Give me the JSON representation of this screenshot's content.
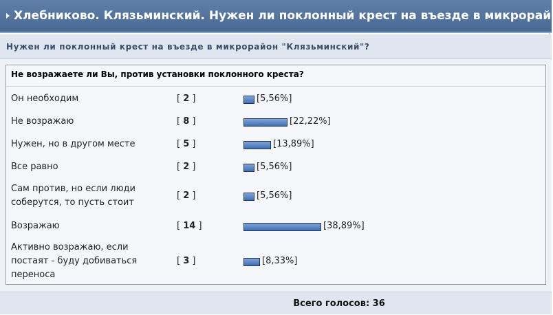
{
  "header": {
    "title": "Хлебниково. Клязьминский. Нужен ли поклонный крест на въезде в микрорайон?"
  },
  "subheader": {
    "title": "Нужен ли поклонный крест на въезде в микрорайон \"Клязьминский\"?"
  },
  "poll": {
    "question": "Не возражаете ли Вы, против установки поклонного креста?",
    "options": [
      {
        "label": "Он необходим",
        "votes": "2",
        "percent": "[5,56%]",
        "fraction": 0.0556
      },
      {
        "label": "Не возражаю",
        "votes": "8",
        "percent": "[22,22%]",
        "fraction": 0.2222
      },
      {
        "label": "Нужен, но в другом месте",
        "votes": "5",
        "percent": "[13,89%]",
        "fraction": 0.1389
      },
      {
        "label": "Все равно",
        "votes": "2",
        "percent": "[5,56%]",
        "fraction": 0.0556
      },
      {
        "label": "Сам против, но если люди соберутся, то пусть стоит",
        "votes": "2",
        "percent": "[5,56%]",
        "fraction": 0.0556
      },
      {
        "label": "Возражаю",
        "votes": "14",
        "percent": "[38,89%]",
        "fraction": 0.3889
      },
      {
        "label": "Активно возражаю, если постаят - буду добиваться переноса",
        "votes": "3",
        "percent": "[8,33%]",
        "fraction": 0.0833
      }
    ],
    "total_label": "Всего голосов: 36"
  },
  "colors": {
    "header_bg": "#4a6a93",
    "bar_fill": "#4f7fc0",
    "bar_border": "#1f3660"
  }
}
